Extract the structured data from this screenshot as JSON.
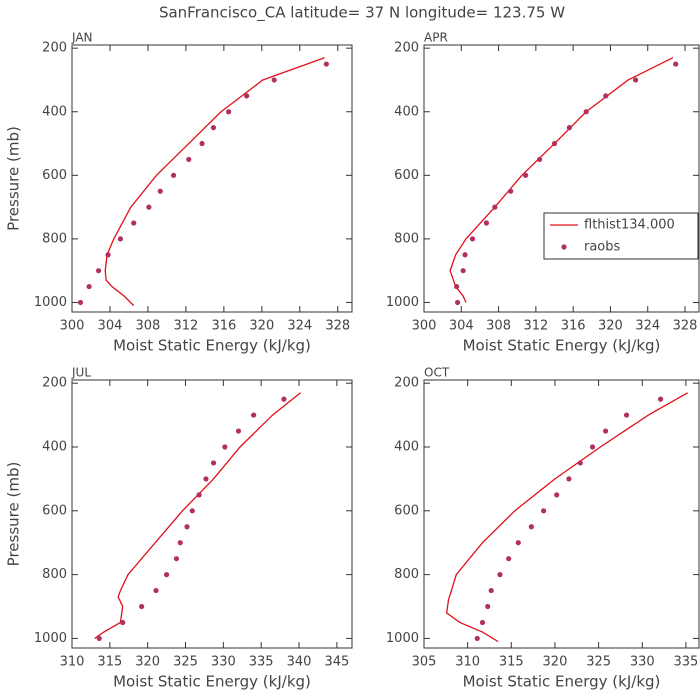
{
  "title": "SanFrancisco_CA  latitude= 37 N longitude= 123.75 W",
  "chart_data": [
    {
      "type": "line",
      "title": "JAN",
      "xlabel": "Moist Static Energy (kJ/kg)",
      "ylabel": "Pressure (mb)",
      "xlim": [
        300,
        329.5
      ],
      "xticks": [
        300,
        304,
        308,
        312,
        316,
        320,
        324,
        328
      ],
      "ylim": [
        1030,
        190
      ],
      "yticks": [
        200,
        400,
        600,
        800,
        1000
      ],
      "series": [
        {
          "type": "line",
          "color": "#e0101a",
          "x": [
            326.6,
            320.1,
            315.7,
            312.3,
            308.9,
            306.2,
            304.4,
            303.7,
            303.5,
            303.6,
            304.2,
            305.5,
            306.5
          ],
          "y": [
            230,
            300,
            400,
            500,
            600,
            700,
            800,
            850,
            900,
            930,
            950,
            980,
            1010
          ]
        },
        {
          "type": "scatter",
          "color": "#b03060",
          "x": [
            326.8,
            321.3,
            318.4,
            316.5,
            314.9,
            313.7,
            312.3,
            310.7,
            309.3,
            308.1,
            306.5,
            305.1,
            303.8,
            302.8,
            301.8,
            300.9
          ],
          "y": [
            250,
            300,
            350,
            400,
            450,
            500,
            550,
            600,
            650,
            700,
            750,
            800,
            850,
            900,
            950,
            1000
          ]
        }
      ]
    },
    {
      "type": "line",
      "title": "APR",
      "xlabel": "Moist Static Energy (kJ/kg)",
      "legend": "right",
      "xlim": [
        300,
        329.5
      ],
      "xticks": [
        300,
        304,
        308,
        312,
        316,
        320,
        324,
        328
      ],
      "ylim": [
        1030,
        190
      ],
      "yticks": [
        200,
        400,
        600,
        800,
        1000
      ],
      "series": [
        {
          "type": "line",
          "name": "flthist134.000",
          "color": "#e0101a",
          "x": [
            326.7,
            321.9,
            317.4,
            314.0,
            310.5,
            307.6,
            304.5,
            303.4,
            302.8,
            303.4,
            304.2,
            304.5
          ],
          "y": [
            230,
            300,
            400,
            500,
            600,
            700,
            800,
            850,
            900,
            950,
            980,
            1000
          ]
        },
        {
          "type": "scatter",
          "name": "raobs",
          "color": "#b03060",
          "x": [
            327.0,
            322.7,
            319.5,
            317.4,
            315.6,
            314.0,
            312.4,
            310.9,
            309.3,
            307.6,
            306.7,
            305.2,
            304.4,
            304.2,
            303.5,
            303.6
          ],
          "y": [
            250,
            300,
            350,
            400,
            450,
            500,
            550,
            600,
            650,
            700,
            750,
            800,
            850,
            900,
            950,
            1000
          ]
        }
      ]
    },
    {
      "type": "line",
      "title": "JUL",
      "xlabel": "Moist Static Energy (kJ/kg)",
      "ylabel": "Pressure (mb)",
      "xlim": [
        310,
        347
      ],
      "xticks": [
        310,
        315,
        320,
        325,
        330,
        335,
        340,
        345
      ],
      "ylim": [
        1030,
        190
      ],
      "yticks": [
        200,
        400,
        600,
        800,
        1000
      ],
      "series": [
        {
          "type": "line",
          "color": "#e0101a",
          "x": [
            340.2,
            336.5,
            332.2,
            328.7,
            324.6,
            321.0,
            317.4,
            316.4,
            316.1,
            316.7,
            316.4,
            314.2,
            313.0
          ],
          "y": [
            230,
            300,
            400,
            500,
            600,
            700,
            800,
            850,
            870,
            900,
            950,
            980,
            1000
          ]
        },
        {
          "type": "scatter",
          "color": "#b03060",
          "x": [
            338.0,
            334.0,
            332.0,
            330.2,
            328.7,
            327.7,
            326.8,
            325.9,
            325.2,
            324.3,
            323.8,
            322.5,
            321.1,
            319.2,
            316.7,
            313.6
          ],
          "y": [
            250,
            300,
            350,
            400,
            450,
            500,
            550,
            600,
            650,
            700,
            750,
            800,
            850,
            900,
            950,
            1000
          ]
        }
      ]
    },
    {
      "type": "line",
      "title": "OCT",
      "xlabel": "Moist Static Energy (kJ/kg)",
      "xlim": [
        305,
        336.5
      ],
      "xticks": [
        305,
        310,
        315,
        320,
        325,
        330,
        335
      ],
      "ylim": [
        1030,
        190
      ],
      "yticks": [
        200,
        400,
        600,
        800,
        1000
      ],
      "series": [
        {
          "type": "line",
          "color": "#e0101a",
          "x": [
            335.2,
            330.7,
            325.2,
            320.0,
            315.4,
            311.7,
            308.7,
            307.8,
            307.6,
            309.1,
            311.7,
            313.5
          ],
          "y": [
            230,
            300,
            400,
            500,
            600,
            700,
            800,
            880,
            920,
            950,
            980,
            1010
          ]
        },
        {
          "type": "scatter",
          "color": "#b03060",
          "x": [
            332.1,
            328.2,
            325.8,
            324.3,
            322.9,
            321.6,
            320.2,
            318.7,
            317.3,
            315.8,
            314.7,
            313.7,
            312.7,
            312.3,
            311.7,
            311.1
          ],
          "y": [
            250,
            300,
            350,
            400,
            450,
            500,
            550,
            600,
            650,
            700,
            750,
            800,
            850,
            900,
            950,
            1000
          ]
        }
      ]
    }
  ]
}
